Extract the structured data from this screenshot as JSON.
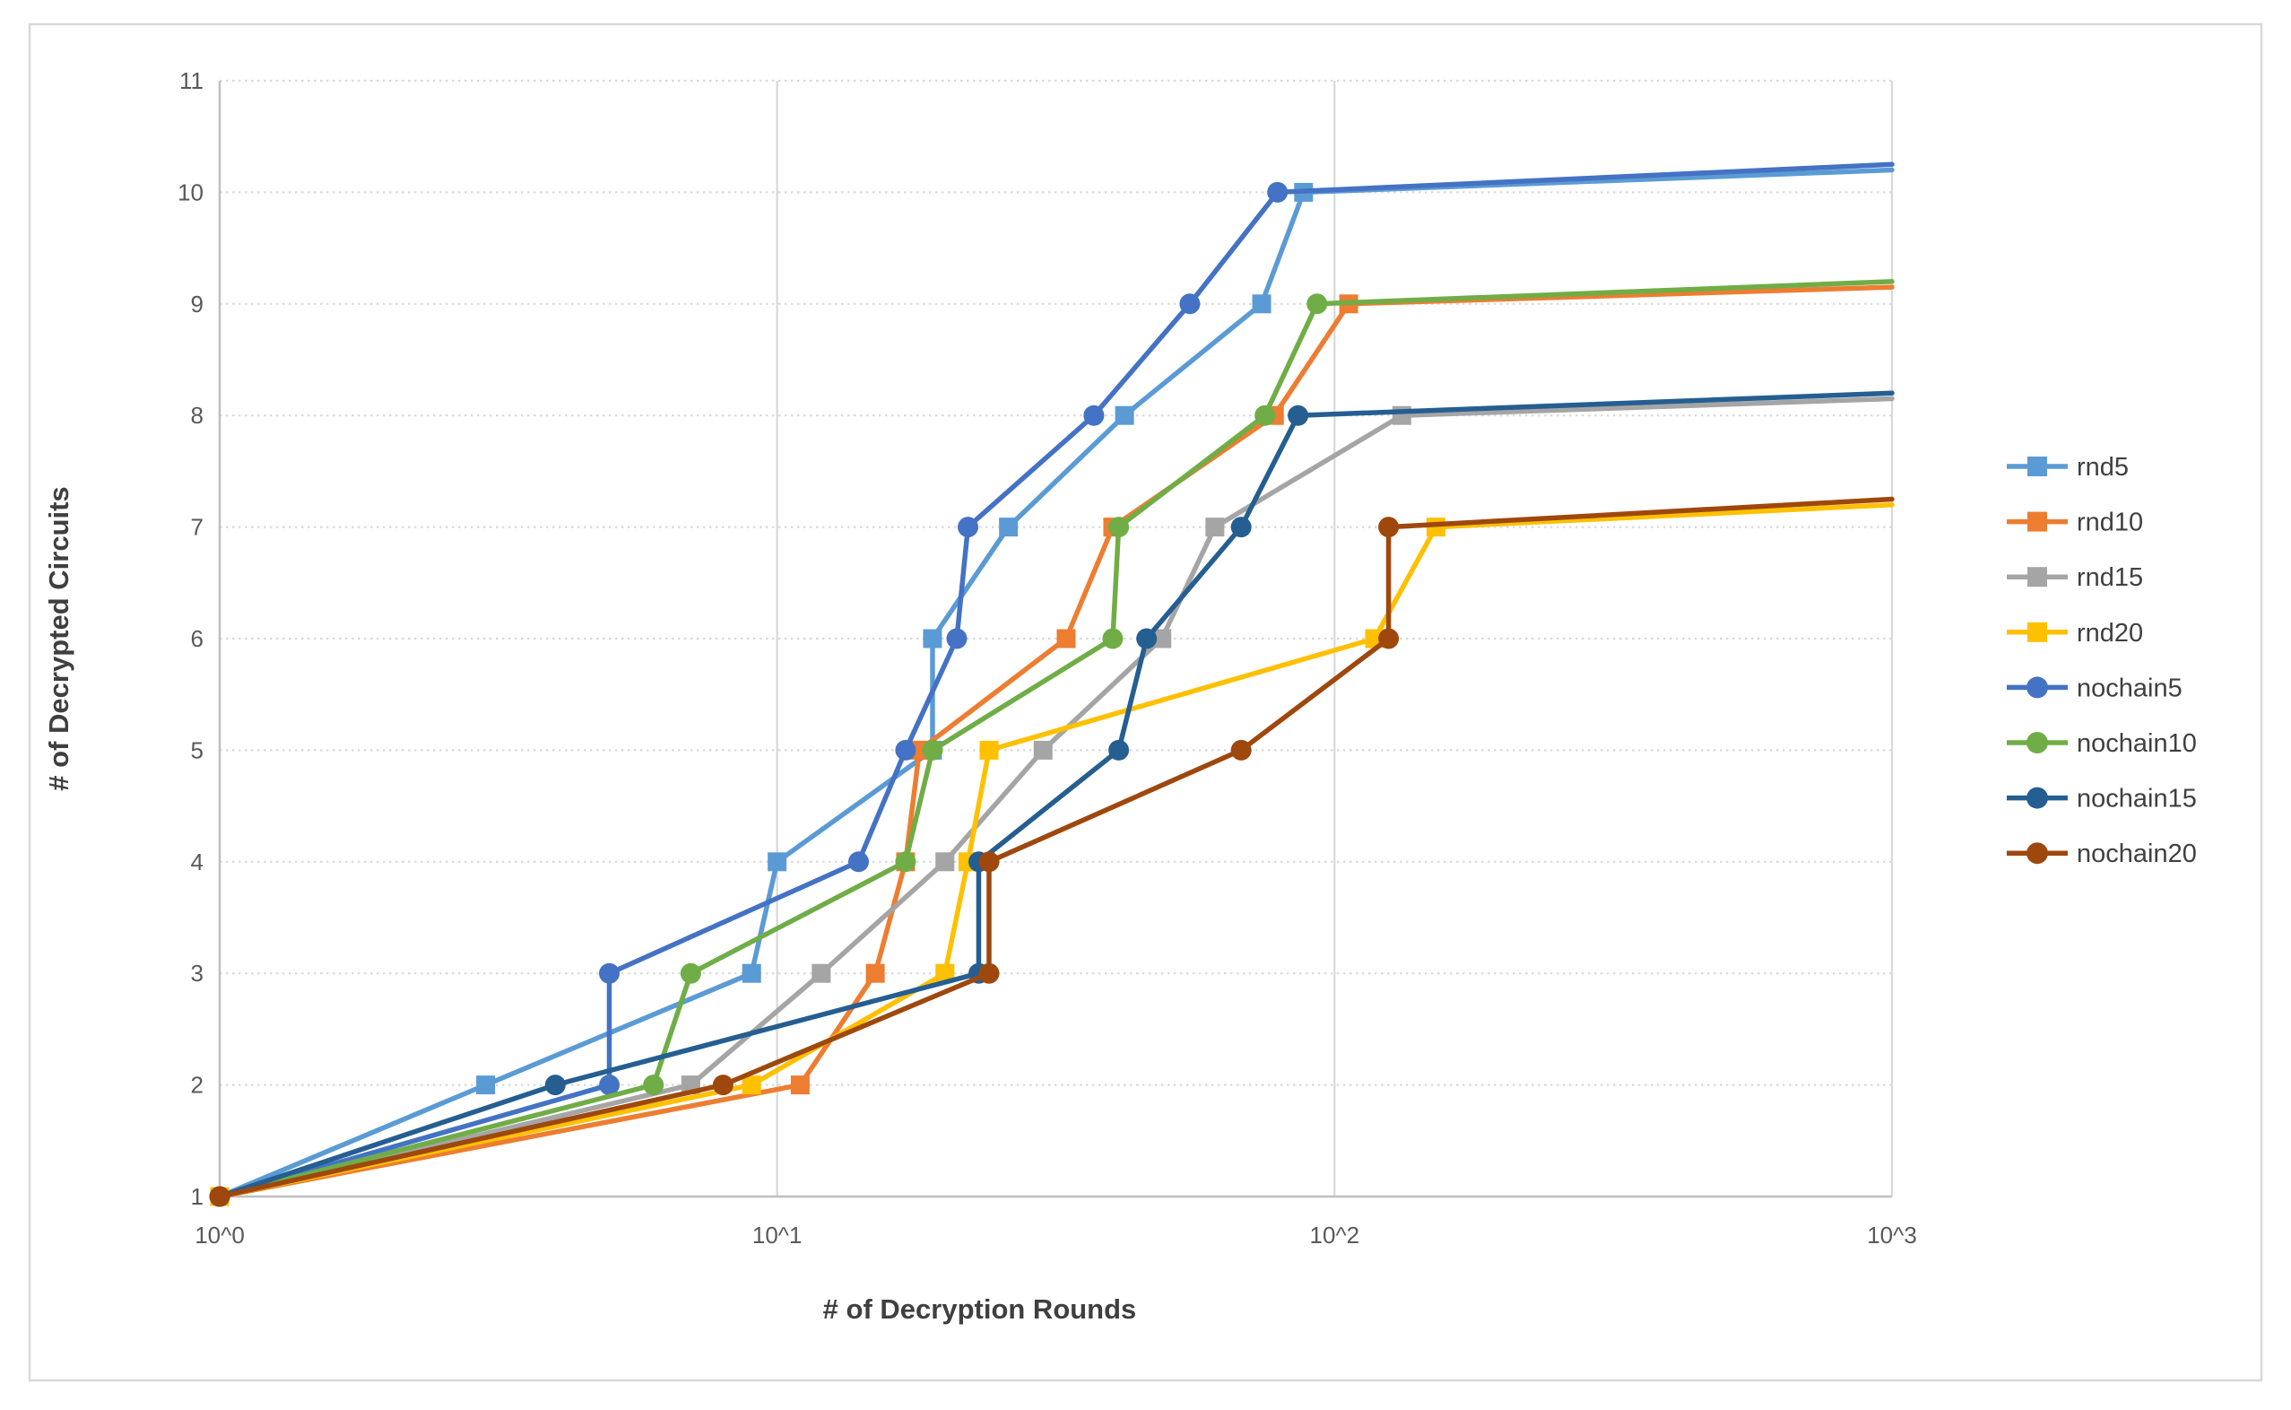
{
  "chart_data": {
    "type": "line",
    "title": "",
    "xlabel": "# of Decryption Rounds",
    "ylabel": "# of Decrypted Circuits",
    "x_scale": "log10",
    "xlim": [
      1,
      1000
    ],
    "ylim": [
      1,
      11
    ],
    "x_ticks": [
      {
        "value": 1,
        "label": "10^0"
      },
      {
        "value": 10,
        "label": "10^1"
      },
      {
        "value": 100,
        "label": "10^2"
      },
      {
        "value": 1000,
        "label": "10^3"
      }
    ],
    "y_ticks": [
      1,
      2,
      3,
      4,
      5,
      6,
      7,
      8,
      9,
      10,
      11
    ],
    "grid": {
      "vertical": "solid",
      "horizontal": "dotted"
    },
    "legend_position": "right",
    "colors": {
      "axis_line": "#BFBFBF",
      "gridline": "#D9D9D9",
      "tick_label": "#595959",
      "axis_title": "#3F3F3F",
      "legend_label": "#404040",
      "chart_border": "#D9D9D9"
    },
    "series": [
      {
        "name": "rnd5",
        "color": "#5B9BD5",
        "marker": "square",
        "points": [
          [
            1,
            1
          ],
          [
            3,
            2
          ],
          [
            9,
            3
          ],
          [
            10,
            4
          ],
          [
            19,
            5
          ],
          [
            19,
            6
          ],
          [
            26,
            7
          ],
          [
            42,
            8
          ],
          [
            74,
            9
          ],
          [
            88,
            10
          ],
          [
            1000,
            10.2
          ]
        ]
      },
      {
        "name": "rnd10",
        "color": "#ED7D31",
        "marker": "square",
        "points": [
          [
            1,
            1
          ],
          [
            11,
            2
          ],
          [
            15,
            3
          ],
          [
            17,
            4
          ],
          [
            18,
            5
          ],
          [
            33,
            6
          ],
          [
            40,
            7
          ],
          [
            78,
            8
          ],
          [
            106,
            9
          ],
          [
            1000,
            9.15
          ]
        ]
      },
      {
        "name": "rnd15",
        "color": "#A5A5A5",
        "marker": "square",
        "points": [
          [
            1,
            1
          ],
          [
            7,
            2
          ],
          [
            12,
            3
          ],
          [
            20,
            4
          ],
          [
            30,
            5
          ],
          [
            49,
            6
          ],
          [
            61,
            7
          ],
          [
            132,
            8
          ],
          [
            1000,
            8.15
          ]
        ]
      },
      {
        "name": "rnd20",
        "color": "#FFC000",
        "marker": "square",
        "points": [
          [
            1,
            1
          ],
          [
            9,
            2
          ],
          [
            20,
            3
          ],
          [
            22,
            4
          ],
          [
            24,
            5
          ],
          [
            118,
            6
          ],
          [
            152,
            7
          ],
          [
            1000,
            7.2
          ]
        ]
      },
      {
        "name": "nochain5",
        "color": "#4472C4",
        "marker": "circle",
        "points": [
          [
            1,
            1
          ],
          [
            5,
            2
          ],
          [
            5,
            3
          ],
          [
            14,
            4
          ],
          [
            17,
            5
          ],
          [
            21,
            6
          ],
          [
            22,
            7
          ],
          [
            37,
            8
          ],
          [
            55,
            9
          ],
          [
            79,
            10
          ],
          [
            1000,
            10.25
          ]
        ]
      },
      {
        "name": "nochain10",
        "color": "#70AD47",
        "marker": "circle",
        "points": [
          [
            1,
            1
          ],
          [
            6,
            2
          ],
          [
            7,
            3
          ],
          [
            17,
            4
          ],
          [
            19,
            5
          ],
          [
            40,
            6
          ],
          [
            41,
            7
          ],
          [
            75,
            8
          ],
          [
            93,
            9
          ],
          [
            1000,
            9.2
          ]
        ]
      },
      {
        "name": "nochain15",
        "color": "#255E91",
        "marker": "circle",
        "points": [
          [
            1,
            1
          ],
          [
            4,
            2
          ],
          [
            23,
            3
          ],
          [
            23,
            4
          ],
          [
            41,
            5
          ],
          [
            46,
            6
          ],
          [
            68,
            7
          ],
          [
            86,
            8
          ],
          [
            1000,
            8.2
          ]
        ]
      },
      {
        "name": "nochain20",
        "color": "#9E480E",
        "marker": "circle",
        "points": [
          [
            1,
            1
          ],
          [
            8,
            2
          ],
          [
            24,
            3
          ],
          [
            24,
            4
          ],
          [
            68,
            5
          ],
          [
            125,
            6
          ],
          [
            125,
            7
          ],
          [
            1000,
            7.25
          ]
        ]
      }
    ]
  }
}
